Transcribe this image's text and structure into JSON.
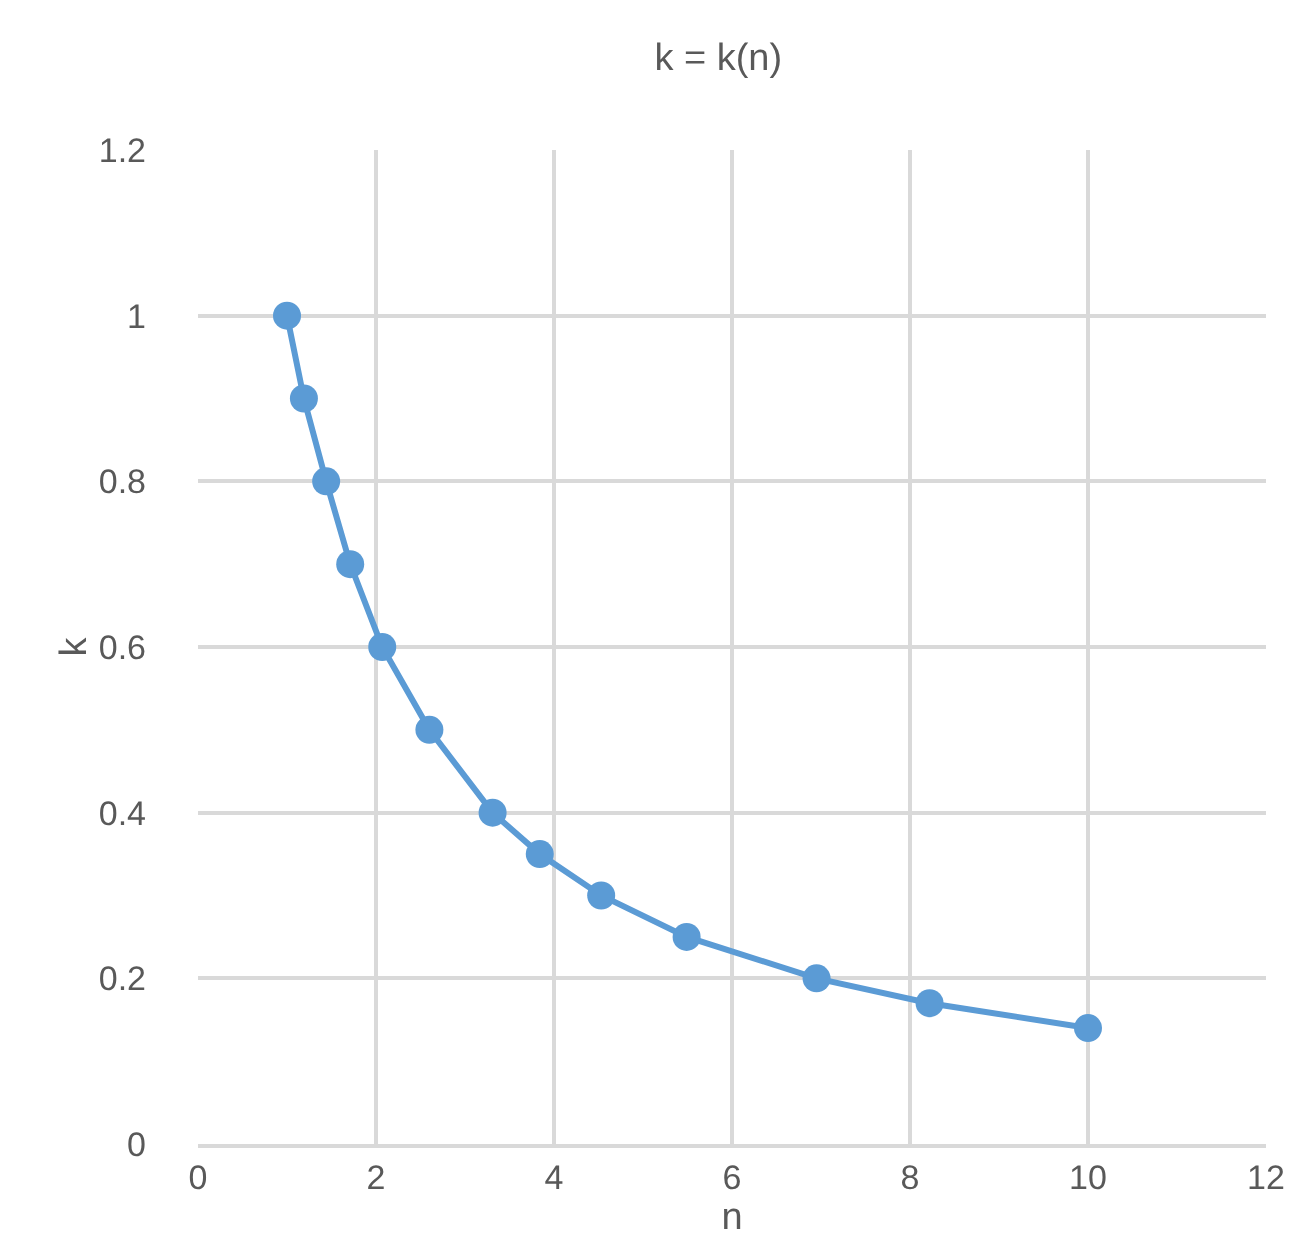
{
  "chart_data": {
    "type": "line",
    "title": "k = k(n)",
    "xlabel": "n",
    "ylabel": "k",
    "x": [
      1,
      1.19,
      1.44,
      1.71,
      2.07,
      2.6,
      3.31,
      3.84,
      4.53,
      5.49,
      6.95,
      8.22,
      10
    ],
    "series": [
      {
        "color": "#5b9bd5",
        "values": [
          1,
          0.9,
          0.8,
          0.7,
          0.6,
          0.5,
          0.4,
          0.35,
          0.3,
          0.25,
          0.2,
          0.17,
          0.14
        ]
      }
    ],
    "xlim": [
      0,
      12
    ],
    "xticks": [
      0,
      2,
      4,
      6,
      8,
      10,
      12
    ],
    "ylim": [
      0,
      1.2
    ],
    "yticks": [
      0,
      0.2,
      0.4,
      0.6,
      0.8,
      1,
      1.2
    ],
    "grid": true,
    "marker": "circle",
    "line_style": "solid"
  }
}
